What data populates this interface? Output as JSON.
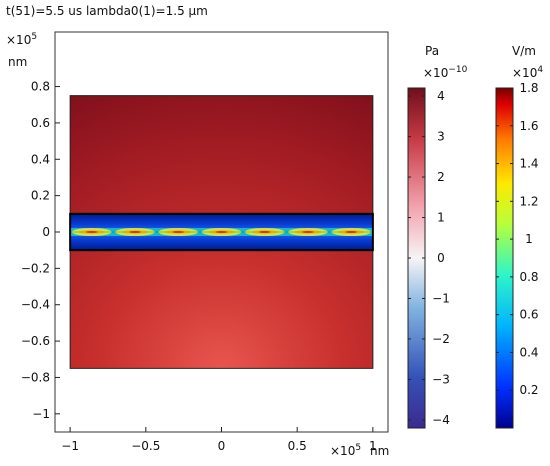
{
  "title": "t(51)=5.5 us lambda0(1)=1.5 µm",
  "plot": {
    "x_exponent_label": "×10",
    "x_exponent_power": "5",
    "x_unit": "nm",
    "y_exponent_label": "×10",
    "y_exponent_power": "5",
    "y_unit": "nm",
    "x_ticks": [
      {
        "value": -1,
        "label": "−1"
      },
      {
        "value": -0.5,
        "label": "−0.5"
      },
      {
        "value": 0,
        "label": "0"
      },
      {
        "value": 0.5,
        "label": "0.5"
      },
      {
        "value": 1,
        "label": "1"
      }
    ],
    "y_ticks": [
      {
        "value": 0.8,
        "label": "0.8"
      },
      {
        "value": 0.6,
        "label": "0.6"
      },
      {
        "value": 0.4,
        "label": "0.4"
      },
      {
        "value": 0.2,
        "label": "0.2"
      },
      {
        "value": 0,
        "label": "0"
      },
      {
        "value": -0.2,
        "label": "−0.2"
      },
      {
        "value": -0.4,
        "label": "−0.4"
      },
      {
        "value": -0.6,
        "label": "−0.6"
      },
      {
        "value": -0.8,
        "label": "−0.8"
      },
      {
        "value": -1,
        "label": "−1"
      }
    ],
    "x_range": [
      -1.1,
      1.1
    ],
    "y_range": [
      -1.1,
      1.1
    ],
    "substrate": {
      "x": [
        -1,
        1
      ],
      "y": [
        -0.75,
        0.75
      ]
    },
    "waveguide": {
      "x": [
        -1,
        1
      ],
      "y": [
        -0.1,
        0.1
      ]
    }
  },
  "colorbar_pressure": {
    "unit": "Pa",
    "exponent_label": "×10",
    "exponent_power": "−10",
    "range": [
      -4.2,
      4.2
    ],
    "ticks": [
      {
        "value": 4,
        "label": "4"
      },
      {
        "value": 3,
        "label": "3"
      },
      {
        "value": 2,
        "label": "2"
      },
      {
        "value": 1,
        "label": "1"
      },
      {
        "value": 0,
        "label": "0"
      },
      {
        "value": -1,
        "label": "−1"
      },
      {
        "value": -2,
        "label": "−2"
      },
      {
        "value": -3,
        "label": "−3"
      },
      {
        "value": -4,
        "label": "−4"
      }
    ]
  },
  "colorbar_field": {
    "unit": "V/m",
    "exponent_label": "×10",
    "exponent_power": "4",
    "range": [
      0,
      1.8
    ],
    "ticks": [
      {
        "value": 1.8,
        "label": "1.8"
      },
      {
        "value": 1.6,
        "label": "1.6"
      },
      {
        "value": 1.4,
        "label": "1.4"
      },
      {
        "value": 1.2,
        "label": "1.2"
      },
      {
        "value": 1,
        "label": "1"
      },
      {
        "value": 0.8,
        "label": "0.8"
      },
      {
        "value": 0.6,
        "label": "0.6"
      },
      {
        "value": 0.4,
        "label": "0.4"
      },
      {
        "value": 0.2,
        "label": "0.2"
      }
    ]
  }
}
